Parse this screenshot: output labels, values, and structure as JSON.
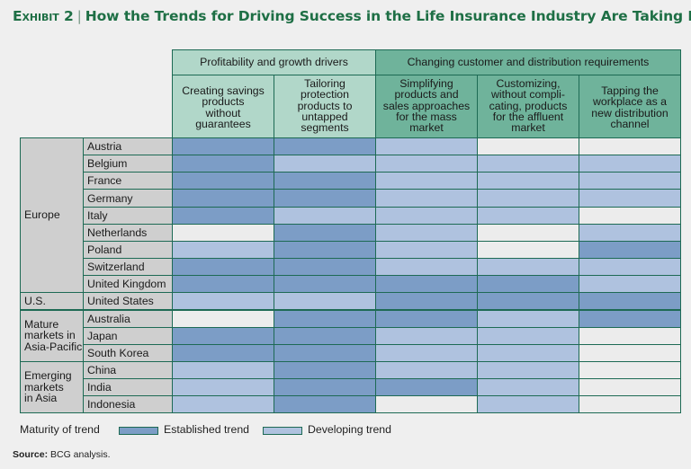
{
  "title": {
    "exhibit": "Exhibit 2",
    "separator": "|",
    "text": "How the Trends for Driving Success in the Life Insurance  Industry Are Taking Hold"
  },
  "colors": {
    "established": "#7c9dc6",
    "developing": "#afc2df",
    "none": "#ececec",
    "header_green_light": "#b1d7c9",
    "header_green_dark": "#6fb39b",
    "row_label_bg": "#cfcfcf"
  },
  "chart_data": {
    "type": "table",
    "column_groups": [
      {
        "label": "Profitability and growth drivers",
        "span": 2
      },
      {
        "label": "Changing customer and distribution requirements",
        "span": 3
      }
    ],
    "columns": [
      "Creating savings products without guarantees",
      "Tailoring protection products to untapped segments",
      "Simplifying products and sales approaches for the mass market",
      "Customizing, without compli-cating, products for the affluent market",
      "Tapping the workplace as a new distribution channel"
    ],
    "column_lines": [
      [
        "Creating savings",
        "products",
        "without",
        "guarantees"
      ],
      [
        "Tailoring",
        "protection",
        "products to",
        "untapped",
        "segments"
      ],
      [
        "Simplifying",
        "products and",
        "sales approaches",
        "for the mass",
        "market"
      ],
      [
        "Customizing,",
        "without compli-",
        "cating, products",
        "for the affluent",
        "market"
      ],
      [
        "Tapping the",
        "workplace as a",
        "new distribution",
        "channel"
      ]
    ],
    "regions": [
      {
        "lines": [
          "Europe"
        ],
        "rows": 9
      },
      {
        "lines": [
          "U.S."
        ],
        "rows": 1
      },
      {
        "lines": [
          "Mature",
          "markets in",
          "Asia-Pacific"
        ],
        "rows": 3
      },
      {
        "lines": [
          "Emerging",
          "markets",
          "in Asia"
        ],
        "rows": 3
      }
    ],
    "rows": [
      {
        "country": "Austria",
        "values": [
          "E",
          "E",
          "D",
          "N",
          "N"
        ]
      },
      {
        "country": "Belgium",
        "values": [
          "E",
          "D",
          "D",
          "D",
          "D"
        ]
      },
      {
        "country": "France",
        "values": [
          "E",
          "E",
          "D",
          "D",
          "D"
        ]
      },
      {
        "country": "Germany",
        "values": [
          "E",
          "E",
          "D",
          "D",
          "D"
        ]
      },
      {
        "country": "Italy",
        "values": [
          "E",
          "D",
          "D",
          "D",
          "N"
        ]
      },
      {
        "country": "Netherlands",
        "values": [
          "N",
          "E",
          "D",
          "N",
          "D"
        ]
      },
      {
        "country": "Poland",
        "values": [
          "D",
          "E",
          "D",
          "N",
          "E"
        ]
      },
      {
        "country": "Switzerland",
        "values": [
          "E",
          "E",
          "D",
          "D",
          "D"
        ]
      },
      {
        "country": "United Kingdom",
        "values": [
          "E",
          "E",
          "E",
          "E",
          "D"
        ]
      },
      {
        "country": "United States",
        "values": [
          "D",
          "D",
          "E",
          "E",
          "E"
        ]
      },
      {
        "country": "Australia",
        "values": [
          "N",
          "E",
          "E",
          "D",
          "E"
        ]
      },
      {
        "country": "Japan",
        "values": [
          "E",
          "E",
          "D",
          "D",
          "N"
        ]
      },
      {
        "country": "South Korea",
        "values": [
          "E",
          "E",
          "D",
          "D",
          "N"
        ]
      },
      {
        "country": "China",
        "values": [
          "D",
          "E",
          "D",
          "D",
          "N"
        ]
      },
      {
        "country": "India",
        "values": [
          "D",
          "E",
          "E",
          "D",
          "N"
        ]
      },
      {
        "country": "Indonesia",
        "values": [
          "D",
          "E",
          "N",
          "D",
          "N"
        ]
      }
    ],
    "value_key": {
      "E": "Established trend",
      "D": "Developing trend",
      "N": ""
    }
  },
  "legend": {
    "title": "Maturity of trend",
    "established": "Established trend",
    "developing": "Developing trend"
  },
  "source": {
    "label": "Source:",
    "text": "BCG analysis."
  }
}
